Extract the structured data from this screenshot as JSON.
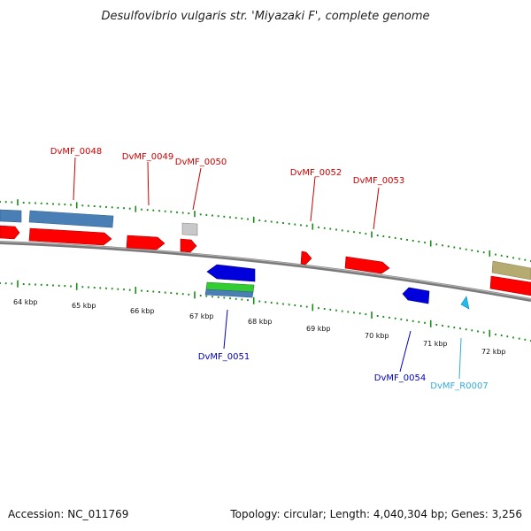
{
  "title": "Desulfovibrio vulgaris str. 'Miyazaki F', complete genome",
  "footer": {
    "accession": "Accession: NC_011769",
    "topology": "Topology: circular; Length: 4,040,304 bp; Genes: 3,256"
  },
  "colors": {
    "cds": "#ff0000",
    "gene": "#4a7fb5",
    "misc": "#c8c8c8",
    "olive": "#b5aa70",
    "blue_gene": "#0000dd",
    "green_gene": "#33cc33",
    "rna": "#22bbee",
    "ticks": "#1a8a1a",
    "top_label": "#cc0000",
    "bottom_label": "#0000bb",
    "rna_label": "#33aadd"
  },
  "scale_labels": [
    "64 kbp",
    "65 kbp",
    "66 kbp",
    "67 kbp",
    "68 kbp",
    "69 kbp",
    "70 kbp",
    "71 kbp",
    "72 kbp"
  ],
  "top_labels": [
    "DvMF_0048",
    "DvMF_0049",
    "DvMF_0050",
    "DvMF_0052",
    "DvMF_0053"
  ],
  "bottom_labels": [
    "DvMF_0051",
    "DvMF_0054",
    "DvMF_R0007"
  ]
}
